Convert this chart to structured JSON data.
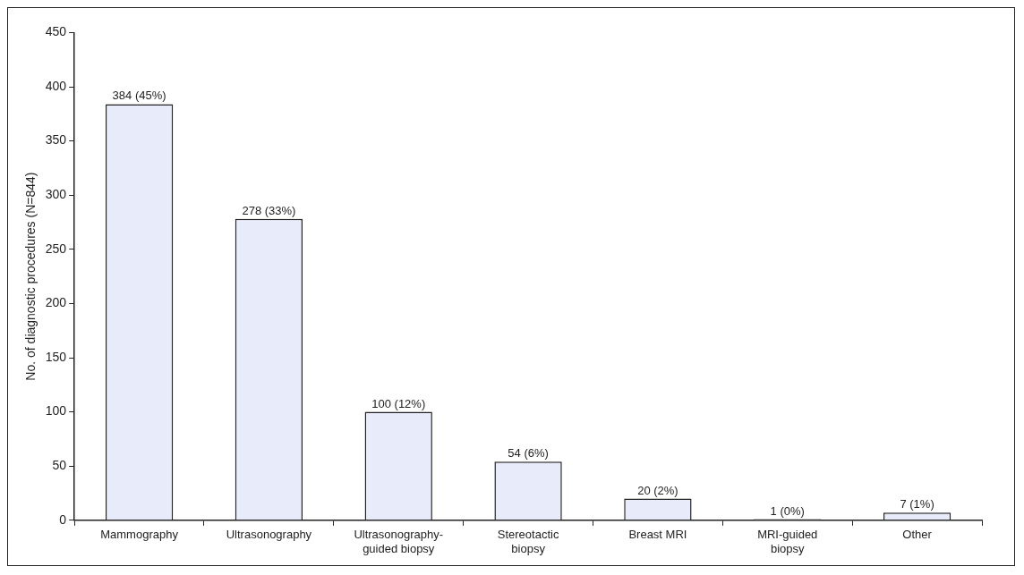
{
  "chart_data": {
    "type": "bar",
    "ylabel": "No. of diagnostic procedures (N=844)",
    "categories": [
      "Mammography",
      "Ultrasonography",
      "Ultrasonography-guided biopsy",
      "Stereotactic biopsy",
      "Breast MRI",
      "MRI-guided biopsy",
      "Other"
    ],
    "values": [
      384,
      278,
      100,
      54,
      20,
      1,
      7
    ],
    "value_labels": [
      "384 (45%)",
      "278 (33%)",
      "100 (12%)",
      "54 (6%)",
      "20 (2%)",
      "1 (0%)",
      "7 (1%)"
    ],
    "color": "#e8ecfa",
    "ylim": [
      0,
      450
    ],
    "yticks": [
      0,
      50,
      100,
      150,
      200,
      250,
      300,
      350,
      400,
      450
    ],
    "grid": false,
    "legend": false
  }
}
